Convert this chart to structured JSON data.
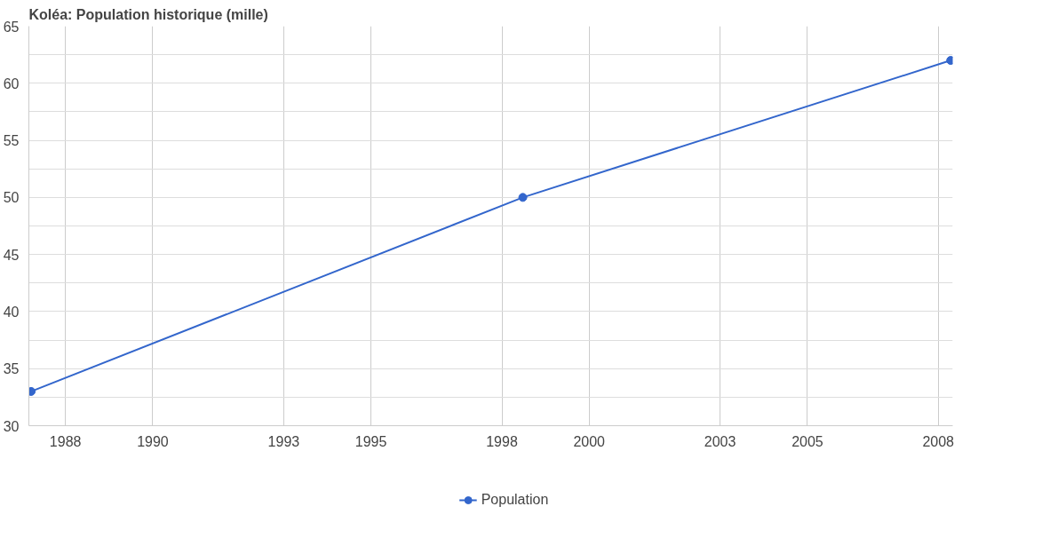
{
  "chart_data": {
    "type": "line",
    "title": "Koléa: Population historique (mille)",
    "x": [
      "1987-03-20",
      "1998-06-25",
      "2008-04-14"
    ],
    "series": [
      {
        "name": "Population",
        "color": "#3366cc",
        "values": [
          33,
          50,
          62
        ]
      }
    ],
    "xlim": [
      "1987-03-01",
      "2008-05-01"
    ],
    "xticks": [
      "1988",
      "1990",
      "1993",
      "1995",
      "1998",
      "2000",
      "2003",
      "2005",
      "2008"
    ],
    "ylim": [
      30,
      65
    ],
    "yticks": [
      30,
      {
        "value": 32.5,
        "label": null
      },
      35,
      {
        "value": 37.5,
        "label": null
      },
      40,
      {
        "value": 42.5,
        "label": null
      },
      45,
      {
        "value": 47.5,
        "label": null
      },
      50,
      {
        "value": 52.5,
        "label": null
      },
      55,
      {
        "value": 57.5,
        "label": null
      },
      60,
      {
        "value": 62.5,
        "label": null
      },
      65
    ],
    "grid": true,
    "legend": "bottom",
    "marker": "circle",
    "line_style": "solid"
  }
}
